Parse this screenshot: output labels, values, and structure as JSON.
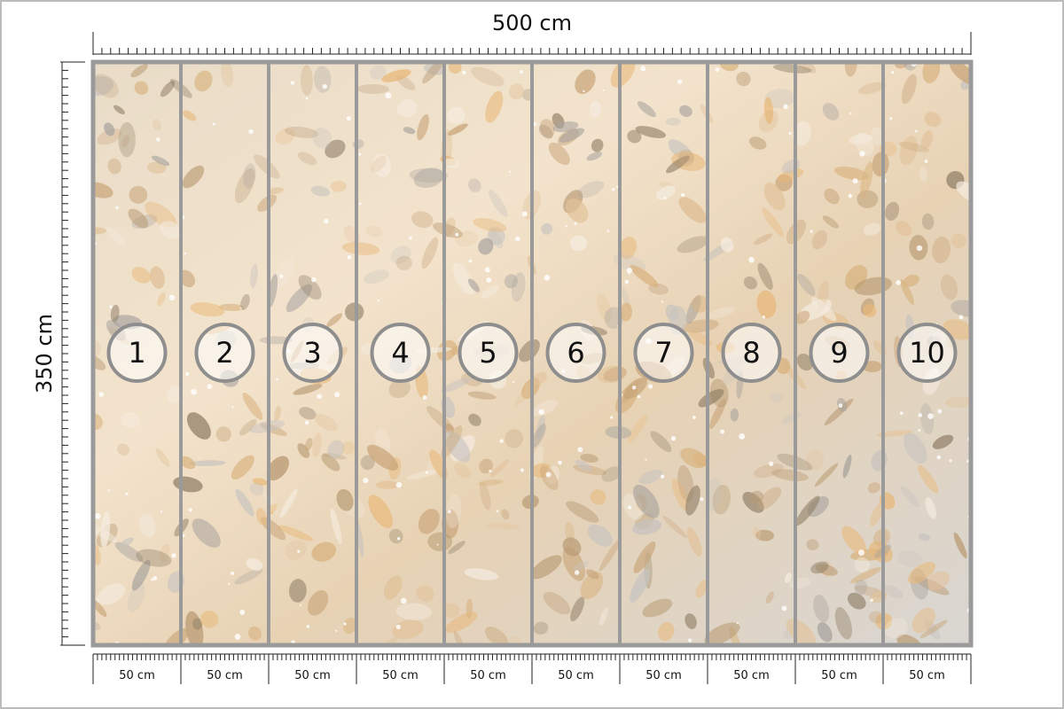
{
  "width_label": "500 cm",
  "height_label": "350 cm",
  "panels": [
    {
      "number": "1",
      "width": "50 cm"
    },
    {
      "number": "2",
      "width": "50 cm"
    },
    {
      "number": "3",
      "width": "50 cm"
    },
    {
      "number": "4",
      "width": "50 cm"
    },
    {
      "number": "5",
      "width": "50 cm"
    },
    {
      "number": "6",
      "width": "50 cm"
    },
    {
      "number": "7",
      "width": "50 cm"
    },
    {
      "number": "8",
      "width": "50 cm"
    },
    {
      "number": "9",
      "width": "50 cm"
    },
    {
      "number": "10",
      "width": "50 cm"
    }
  ]
}
